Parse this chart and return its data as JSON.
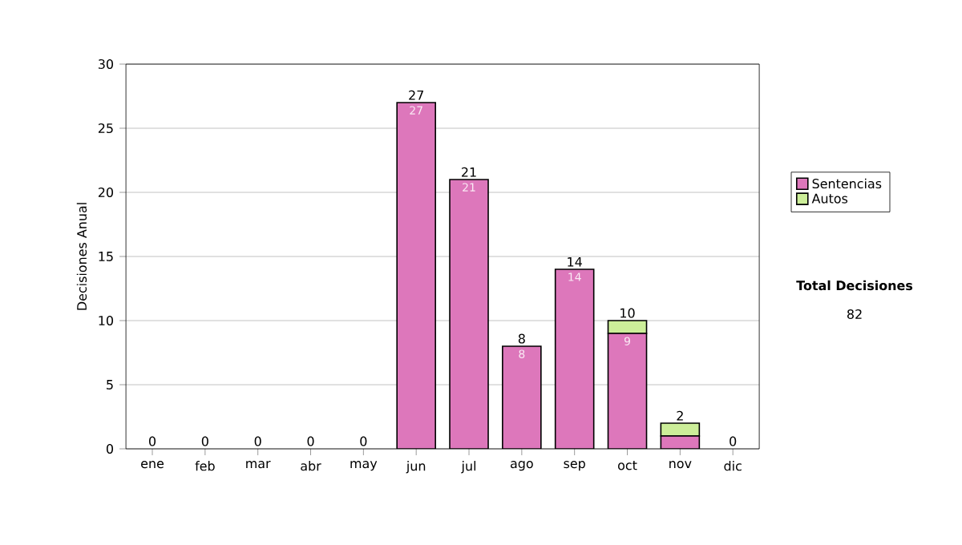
{
  "chart_data": {
    "type": "bar",
    "stacked": true,
    "ylabel": "Decisiones Anual",
    "categories": [
      "ene",
      "feb",
      "mar",
      "abr",
      "may",
      "jun",
      "jul",
      "ago",
      "sep",
      "oct",
      "nov",
      "dic"
    ],
    "series": [
      {
        "name": "Sentencias",
        "color": "#dd77bb",
        "values": [
          0,
          0,
          0,
          0,
          0,
          27,
          21,
          8,
          14,
          9,
          1,
          0
        ],
        "value_labels": [
          null,
          null,
          null,
          null,
          null,
          "27",
          "21",
          "8",
          "14",
          "9",
          null,
          null
        ]
      },
      {
        "name": "Autos",
        "color": "#ccee99",
        "values": [
          0,
          0,
          0,
          0,
          0,
          0,
          0,
          0,
          0,
          1,
          1,
          0
        ]
      }
    ],
    "totals": [
      "0",
      "0",
      "0",
      "0",
      "0",
      "27",
      "21",
      "8",
      "14",
      "10",
      "2",
      "0"
    ],
    "ylim": [
      0,
      30
    ],
    "yticks": [
      0,
      5,
      10,
      15,
      20,
      25,
      30
    ],
    "grid": "y",
    "legend": "right",
    "annotations": [
      "Total Decisiones",
      "82"
    ]
  }
}
